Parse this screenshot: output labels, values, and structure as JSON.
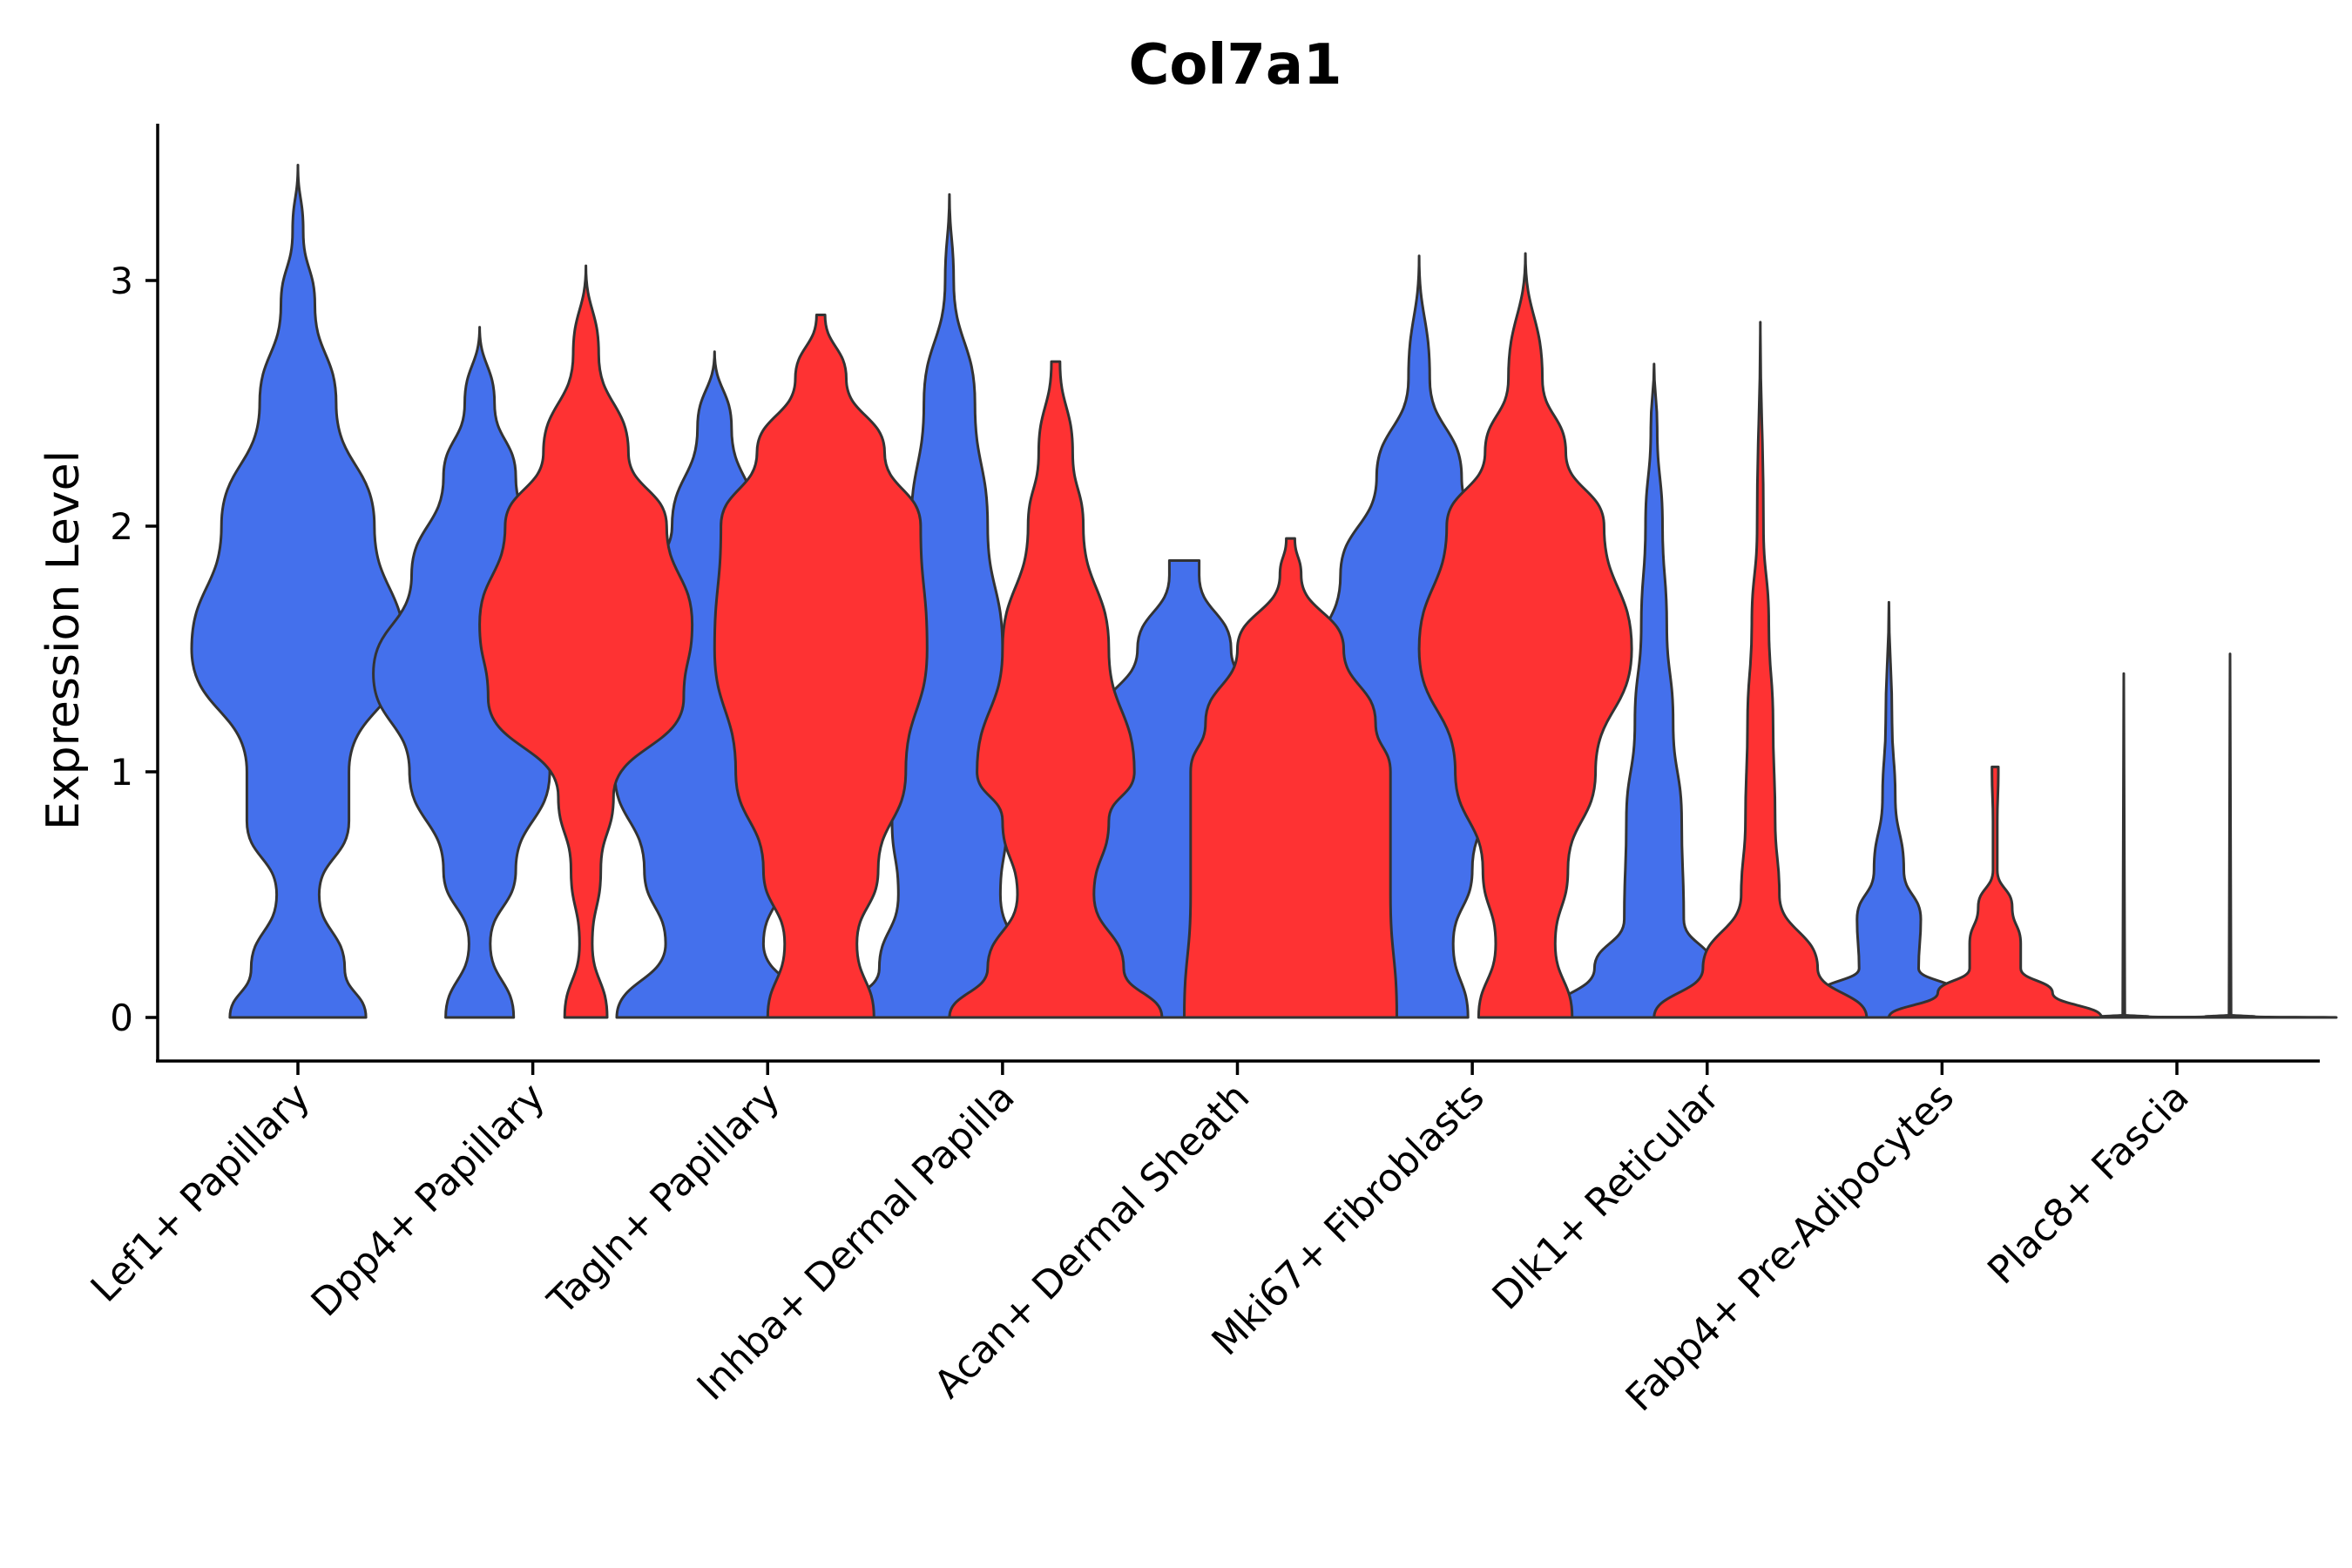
{
  "chart_data": {
    "type": "violin",
    "title": "Col7a1",
    "xlabel": "",
    "ylabel": "Expression Level",
    "ylim": [
      -0.17,
      3.65
    ],
    "yticks": [
      0,
      1,
      2,
      3
    ],
    "grid": false,
    "legend": "none",
    "categories": [
      "Lef1+ Papillary",
      "Dpp4+ Papillary",
      "Tagln+ Papillary",
      "Inhba+ Dermal Papilla",
      "Acan+ Dermal Sheath",
      "Mki67+ Fibroblasts",
      "Dlk1+ Reticular",
      "Fabp4+ Pre-Adipocytes",
      "Plac8+ Fascia"
    ],
    "series": [
      {
        "name": "group 1",
        "color": "#4470ec",
        "violins": [
          {
            "category": "Lef1+ Papillary",
            "max": 3.47,
            "half_width": 0.5,
            "profile": [
              [
                0,
                0.32
              ],
              [
                0.2,
                0.22
              ],
              [
                0.5,
                0.1
              ],
              [
                0.8,
                0.24
              ],
              [
                1.0,
                0.24
              ],
              [
                1.5,
                0.5
              ],
              [
                2.0,
                0.36
              ],
              [
                2.5,
                0.18
              ],
              [
                2.9,
                0.08
              ],
              [
                3.2,
                0.025
              ],
              [
                3.47,
                0
              ]
            ]
          },
          {
            "category": "Dpp4+ Papillary",
            "max": 2.81,
            "half_width": 0.5,
            "profile": [
              [
                0,
                0.16
              ],
              [
                0.3,
                0.05
              ],
              [
                0.6,
                0.17
              ],
              [
                1.0,
                0.33
              ],
              [
                1.4,
                0.5
              ],
              [
                1.8,
                0.32
              ],
              [
                2.2,
                0.17
              ],
              [
                2.5,
                0.07
              ],
              [
                2.81,
                0
              ]
            ]
          },
          {
            "category": "Tagln+ Papillary",
            "max": 2.71,
            "half_width": 0.5,
            "profile": [
              [
                0,
                0.46
              ],
              [
                0.3,
                0.23
              ],
              [
                0.6,
                0.33
              ],
              [
                1.0,
                0.47
              ],
              [
                1.3,
                0.5
              ],
              [
                1.7,
                0.37
              ],
              [
                2.0,
                0.2
              ],
              [
                2.4,
                0.08
              ],
              [
                2.71,
                0
              ]
            ]
          },
          {
            "category": "Inhba+ Dermal Papilla",
            "max": 3.35,
            "half_width": 0.5,
            "profile": [
              [
                0,
                0.5
              ],
              [
                0.2,
                0.33
              ],
              [
                0.5,
                0.24
              ],
              [
                0.8,
                0.27
              ],
              [
                1.0,
                0.29
              ],
              [
                1.5,
                0.25
              ],
              [
                2.0,
                0.18
              ],
              [
                2.5,
                0.12
              ],
              [
                3.0,
                0.02
              ],
              [
                3.35,
                0
              ]
            ]
          },
          {
            "category": "Acan+ Dermal Sheath",
            "max": 1.86,
            "half_width": 0.5,
            "profile": [
              [
                0,
                0.5
              ],
              [
                0.5,
                0.5
              ],
              [
                1.0,
                0.5
              ],
              [
                1.2,
                0.4
              ],
              [
                1.5,
                0.22
              ],
              [
                1.8,
                0.07
              ],
              [
                1.86,
                0.07
              ]
            ]
          },
          {
            "category": "Mki67+ Fibroblasts",
            "max": 3.1,
            "half_width": 0.5,
            "profile": [
              [
                0,
                0.23
              ],
              [
                0.3,
                0.16
              ],
              [
                0.6,
                0.25
              ],
              [
                1.0,
                0.38
              ],
              [
                1.4,
                0.5
              ],
              [
                1.8,
                0.37
              ],
              [
                2.2,
                0.2
              ],
              [
                2.6,
                0.05
              ],
              [
                3.1,
                0
              ]
            ]
          },
          {
            "category": "Dlk1+ Reticular",
            "max": 2.66,
            "half_width": 0.5,
            "profile": [
              [
                0,
                0.5
              ],
              [
                0.2,
                0.28
              ],
              [
                0.4,
                0.14
              ],
              [
                0.8,
                0.13
              ],
              [
                1.2,
                0.09
              ],
              [
                1.6,
                0.06
              ],
              [
                2.0,
                0.04
              ],
              [
                2.4,
                0.015
              ],
              [
                2.66,
                0
              ]
            ]
          },
          {
            "category": "Fabp4+ Pre-Adipocytes",
            "max": 1.69,
            "half_width": 0.5,
            "profile": [
              [
                0,
                0.5
              ],
              [
                0.1,
                0.32
              ],
              [
                0.2,
                0.14
              ],
              [
                0.4,
                0.15
              ],
              [
                0.6,
                0.07
              ],
              [
                0.9,
                0.03
              ],
              [
                1.2,
                0.015
              ],
              [
                1.69,
                0
              ]
            ]
          },
          {
            "category": "Plac8+ Fascia",
            "max": 1.4,
            "half_width": 0.5,
            "profile": [
              [
                0,
                0.5
              ],
              [
                0.003,
                0.12
              ],
              [
                0.01,
                0.005
              ],
              [
                1.4,
                0
              ]
            ]
          }
        ]
      },
      {
        "name": "group 2",
        "color": "#fe3233",
        "violins": [
          {
            "category": "Dpp4+ Papillary",
            "max": 3.06,
            "half_width": 0.5,
            "profile": [
              [
                0,
                0.1
              ],
              [
                0.3,
                0.03
              ],
              [
                0.6,
                0.07
              ],
              [
                0.9,
                0.13
              ],
              [
                1.3,
                0.46
              ],
              [
                1.6,
                0.5
              ],
              [
                2.0,
                0.38
              ],
              [
                2.3,
                0.2
              ],
              [
                2.7,
                0.06
              ],
              [
                3.06,
                0
              ]
            ]
          },
          {
            "category": "Tagln+ Papillary",
            "max": 2.86,
            "half_width": 0.5,
            "profile": [
              [
                0,
                0.25
              ],
              [
                0.3,
                0.17
              ],
              [
                0.6,
                0.27
              ],
              [
                1.0,
                0.4
              ],
              [
                1.5,
                0.5
              ],
              [
                2.0,
                0.47
              ],
              [
                2.3,
                0.3
              ],
              [
                2.6,
                0.12
              ],
              [
                2.86,
                0.02
              ]
            ]
          },
          {
            "category": "Inhba+ Dermal Papilla",
            "max": 2.67,
            "half_width": 0.5,
            "profile": [
              [
                0,
                0.5
              ],
              [
                0.2,
                0.32
              ],
              [
                0.5,
                0.18
              ],
              [
                0.8,
                0.25
              ],
              [
                1.0,
                0.37
              ],
              [
                1.5,
                0.25
              ],
              [
                2.0,
                0.13
              ],
              [
                2.3,
                0.08
              ],
              [
                2.67,
                0.02
              ]
            ]
          },
          {
            "category": "Acan+ Dermal Sheath",
            "max": 1.95,
            "half_width": 0.5,
            "profile": [
              [
                0,
                0.5
              ],
              [
                0.5,
                0.47
              ],
              [
                1.0,
                0.47
              ],
              [
                1.2,
                0.4
              ],
              [
                1.5,
                0.25
              ],
              [
                1.8,
                0.05
              ],
              [
                1.95,
                0.02
              ]
            ]
          },
          {
            "category": "Mki67+ Fibroblasts",
            "max": 3.11,
            "half_width": 0.5,
            "profile": [
              [
                0,
                0.22
              ],
              [
                0.3,
                0.14
              ],
              [
                0.6,
                0.2
              ],
              [
                1.0,
                0.33
              ],
              [
                1.5,
                0.5
              ],
              [
                2.0,
                0.37
              ],
              [
                2.3,
                0.19
              ],
              [
                2.6,
                0.08
              ],
              [
                3.11,
                0
              ]
            ]
          },
          {
            "category": "Dlk1+ Reticular",
            "max": 2.83,
            "half_width": 0.5,
            "profile": [
              [
                0,
                0.5
              ],
              [
                0.2,
                0.27
              ],
              [
                0.5,
                0.09
              ],
              [
                0.8,
                0.07
              ],
              [
                1.2,
                0.06
              ],
              [
                1.6,
                0.04
              ],
              [
                2.0,
                0.015
              ],
              [
                2.83,
                0
              ]
            ]
          },
          {
            "category": "Fabp4+ Pre-Adipocytes",
            "max": 1.02,
            "half_width": 0.5,
            "profile": [
              [
                0,
                0.5
              ],
              [
                0.1,
                0.27
              ],
              [
                0.2,
                0.12
              ],
              [
                0.3,
                0.12
              ],
              [
                0.45,
                0.08
              ],
              [
                0.6,
                0.01
              ],
              [
                0.8,
                0.01
              ],
              [
                1.0,
                0.015
              ],
              [
                1.02,
                0.015
              ]
            ]
          },
          {
            "category": "Plac8+ Fascia",
            "max": 1.48,
            "half_width": 0.5,
            "profile": [
              [
                0,
                0.5
              ],
              [
                0.003,
                0.12
              ],
              [
                0.01,
                0.005
              ],
              [
                1.48,
                0
              ]
            ]
          }
        ]
      }
    ]
  }
}
